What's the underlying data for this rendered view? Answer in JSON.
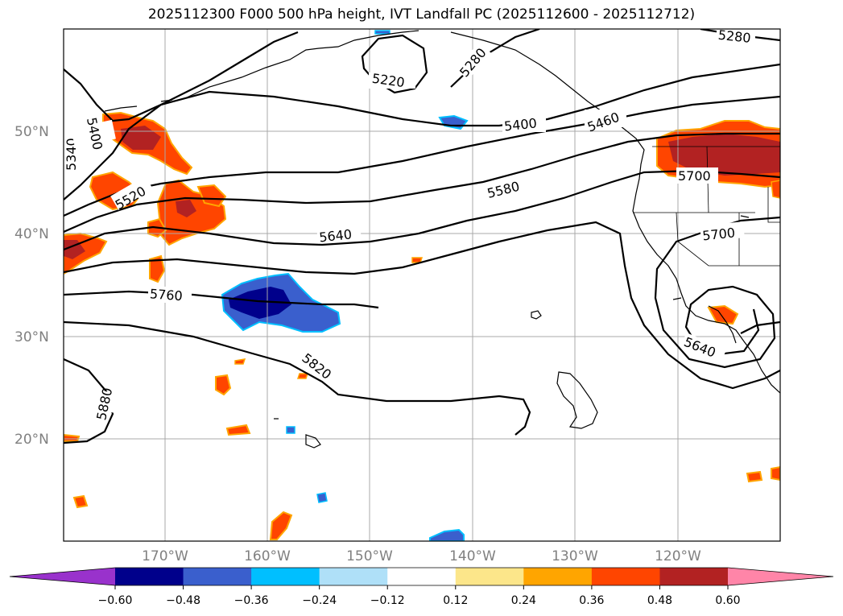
{
  "title": "2025112300 F000 500 hPa height, IVT Landfall PC (2025112600 - 2025112712)",
  "lat_labels": [
    "50°N",
    "40°N",
    "30°N",
    "20°N"
  ],
  "lon_labels": [
    "170°W",
    "160°W",
    "150°W",
    "140°W",
    "130°W",
    "120°W"
  ],
  "colorbar": {
    "ticks": [
      "−0.60",
      "−0.48",
      "−0.36",
      "−0.24",
      "−0.12",
      "0.12",
      "0.24",
      "0.36",
      "0.48",
      "0.60"
    ],
    "colors": [
      "#9932cc",
      "#00008b",
      "#3a5fcd",
      "#00bfff",
      "#afe0f8",
      "#ffffff",
      "#fce68a",
      "#ffa500",
      "#ff4500",
      "#b22222",
      "#ff85a8"
    ]
  },
  "contour_labels": [
    "5220",
    "5280",
    "5280",
    "5340",
    "5400",
    "5400",
    "5460",
    "5520",
    "5580",
    "5640",
    "5640",
    "5700",
    "5700",
    "5760",
    "5820",
    "5880"
  ],
  "colors": {
    "contour": "#000000",
    "grid": "#a9a9a9",
    "axis_label": "#808080"
  }
}
